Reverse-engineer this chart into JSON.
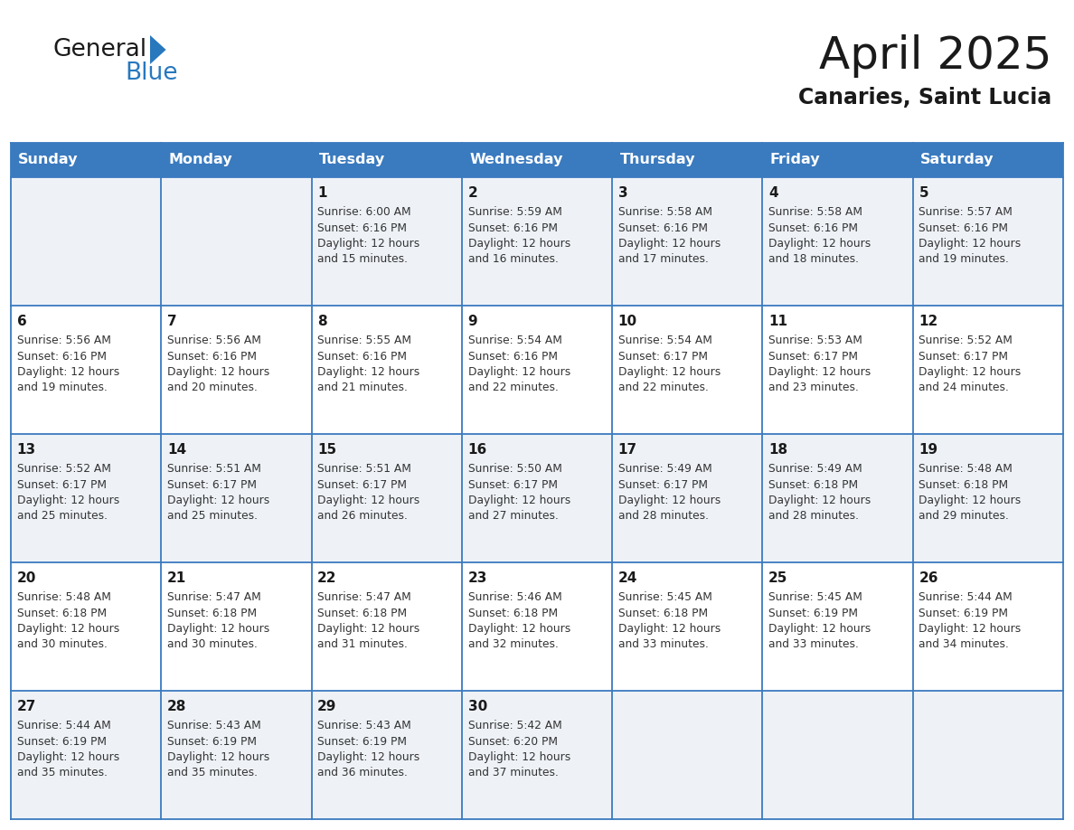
{
  "title": "April 2025",
  "subtitle": "Canaries, Saint Lucia",
  "header_bg_color": "#3a7abf",
  "header_text_color": "#ffffff",
  "grid_line_color": "#3a7abf",
  "text_color_dark": "#1a1a1a",
  "text_color_body": "#333333",
  "days_of_week": [
    "Sunday",
    "Monday",
    "Tuesday",
    "Wednesday",
    "Thursday",
    "Friday",
    "Saturday"
  ],
  "logo_general_color": "#1a1a1a",
  "logo_blue_color": "#2878be",
  "row_bg_colors": [
    "#eef2f7",
    "#ffffff",
    "#eef2f7",
    "#ffffff",
    "#eef2f7"
  ],
  "weeks": [
    [
      {
        "day": "",
        "sunrise": "",
        "sunset": "",
        "daylight": ""
      },
      {
        "day": "",
        "sunrise": "",
        "sunset": "",
        "daylight": ""
      },
      {
        "day": "1",
        "sunrise": "Sunrise: 6:00 AM",
        "sunset": "Sunset: 6:16 PM",
        "daylight": "Daylight: 12 hours\nand 15 minutes."
      },
      {
        "day": "2",
        "sunrise": "Sunrise: 5:59 AM",
        "sunset": "Sunset: 6:16 PM",
        "daylight": "Daylight: 12 hours\nand 16 minutes."
      },
      {
        "day": "3",
        "sunrise": "Sunrise: 5:58 AM",
        "sunset": "Sunset: 6:16 PM",
        "daylight": "Daylight: 12 hours\nand 17 minutes."
      },
      {
        "day": "4",
        "sunrise": "Sunrise: 5:58 AM",
        "sunset": "Sunset: 6:16 PM",
        "daylight": "Daylight: 12 hours\nand 18 minutes."
      },
      {
        "day": "5",
        "sunrise": "Sunrise: 5:57 AM",
        "sunset": "Sunset: 6:16 PM",
        "daylight": "Daylight: 12 hours\nand 19 minutes."
      }
    ],
    [
      {
        "day": "6",
        "sunrise": "Sunrise: 5:56 AM",
        "sunset": "Sunset: 6:16 PM",
        "daylight": "Daylight: 12 hours\nand 19 minutes."
      },
      {
        "day": "7",
        "sunrise": "Sunrise: 5:56 AM",
        "sunset": "Sunset: 6:16 PM",
        "daylight": "Daylight: 12 hours\nand 20 minutes."
      },
      {
        "day": "8",
        "sunrise": "Sunrise: 5:55 AM",
        "sunset": "Sunset: 6:16 PM",
        "daylight": "Daylight: 12 hours\nand 21 minutes."
      },
      {
        "day": "9",
        "sunrise": "Sunrise: 5:54 AM",
        "sunset": "Sunset: 6:16 PM",
        "daylight": "Daylight: 12 hours\nand 22 minutes."
      },
      {
        "day": "10",
        "sunrise": "Sunrise: 5:54 AM",
        "sunset": "Sunset: 6:17 PM",
        "daylight": "Daylight: 12 hours\nand 22 minutes."
      },
      {
        "day": "11",
        "sunrise": "Sunrise: 5:53 AM",
        "sunset": "Sunset: 6:17 PM",
        "daylight": "Daylight: 12 hours\nand 23 minutes."
      },
      {
        "day": "12",
        "sunrise": "Sunrise: 5:52 AM",
        "sunset": "Sunset: 6:17 PM",
        "daylight": "Daylight: 12 hours\nand 24 minutes."
      }
    ],
    [
      {
        "day": "13",
        "sunrise": "Sunrise: 5:52 AM",
        "sunset": "Sunset: 6:17 PM",
        "daylight": "Daylight: 12 hours\nand 25 minutes."
      },
      {
        "day": "14",
        "sunrise": "Sunrise: 5:51 AM",
        "sunset": "Sunset: 6:17 PM",
        "daylight": "Daylight: 12 hours\nand 25 minutes."
      },
      {
        "day": "15",
        "sunrise": "Sunrise: 5:51 AM",
        "sunset": "Sunset: 6:17 PM",
        "daylight": "Daylight: 12 hours\nand 26 minutes."
      },
      {
        "day": "16",
        "sunrise": "Sunrise: 5:50 AM",
        "sunset": "Sunset: 6:17 PM",
        "daylight": "Daylight: 12 hours\nand 27 minutes."
      },
      {
        "day": "17",
        "sunrise": "Sunrise: 5:49 AM",
        "sunset": "Sunset: 6:17 PM",
        "daylight": "Daylight: 12 hours\nand 28 minutes."
      },
      {
        "day": "18",
        "sunrise": "Sunrise: 5:49 AM",
        "sunset": "Sunset: 6:18 PM",
        "daylight": "Daylight: 12 hours\nand 28 minutes."
      },
      {
        "day": "19",
        "sunrise": "Sunrise: 5:48 AM",
        "sunset": "Sunset: 6:18 PM",
        "daylight": "Daylight: 12 hours\nand 29 minutes."
      }
    ],
    [
      {
        "day": "20",
        "sunrise": "Sunrise: 5:48 AM",
        "sunset": "Sunset: 6:18 PM",
        "daylight": "Daylight: 12 hours\nand 30 minutes."
      },
      {
        "day": "21",
        "sunrise": "Sunrise: 5:47 AM",
        "sunset": "Sunset: 6:18 PM",
        "daylight": "Daylight: 12 hours\nand 30 minutes."
      },
      {
        "day": "22",
        "sunrise": "Sunrise: 5:47 AM",
        "sunset": "Sunset: 6:18 PM",
        "daylight": "Daylight: 12 hours\nand 31 minutes."
      },
      {
        "day": "23",
        "sunrise": "Sunrise: 5:46 AM",
        "sunset": "Sunset: 6:18 PM",
        "daylight": "Daylight: 12 hours\nand 32 minutes."
      },
      {
        "day": "24",
        "sunrise": "Sunrise: 5:45 AM",
        "sunset": "Sunset: 6:18 PM",
        "daylight": "Daylight: 12 hours\nand 33 minutes."
      },
      {
        "day": "25",
        "sunrise": "Sunrise: 5:45 AM",
        "sunset": "Sunset: 6:19 PM",
        "daylight": "Daylight: 12 hours\nand 33 minutes."
      },
      {
        "day": "26",
        "sunrise": "Sunrise: 5:44 AM",
        "sunset": "Sunset: 6:19 PM",
        "daylight": "Daylight: 12 hours\nand 34 minutes."
      }
    ],
    [
      {
        "day": "27",
        "sunrise": "Sunrise: 5:44 AM",
        "sunset": "Sunset: 6:19 PM",
        "daylight": "Daylight: 12 hours\nand 35 minutes."
      },
      {
        "day": "28",
        "sunrise": "Sunrise: 5:43 AM",
        "sunset": "Sunset: 6:19 PM",
        "daylight": "Daylight: 12 hours\nand 35 minutes."
      },
      {
        "day": "29",
        "sunrise": "Sunrise: 5:43 AM",
        "sunset": "Sunset: 6:19 PM",
        "daylight": "Daylight: 12 hours\nand 36 minutes."
      },
      {
        "day": "30",
        "sunrise": "Sunrise: 5:42 AM",
        "sunset": "Sunset: 6:20 PM",
        "daylight": "Daylight: 12 hours\nand 37 minutes."
      },
      {
        "day": "",
        "sunrise": "",
        "sunset": "",
        "daylight": ""
      },
      {
        "day": "",
        "sunrise": "",
        "sunset": "",
        "daylight": ""
      },
      {
        "day": "",
        "sunrise": "",
        "sunset": "",
        "daylight": ""
      }
    ]
  ]
}
